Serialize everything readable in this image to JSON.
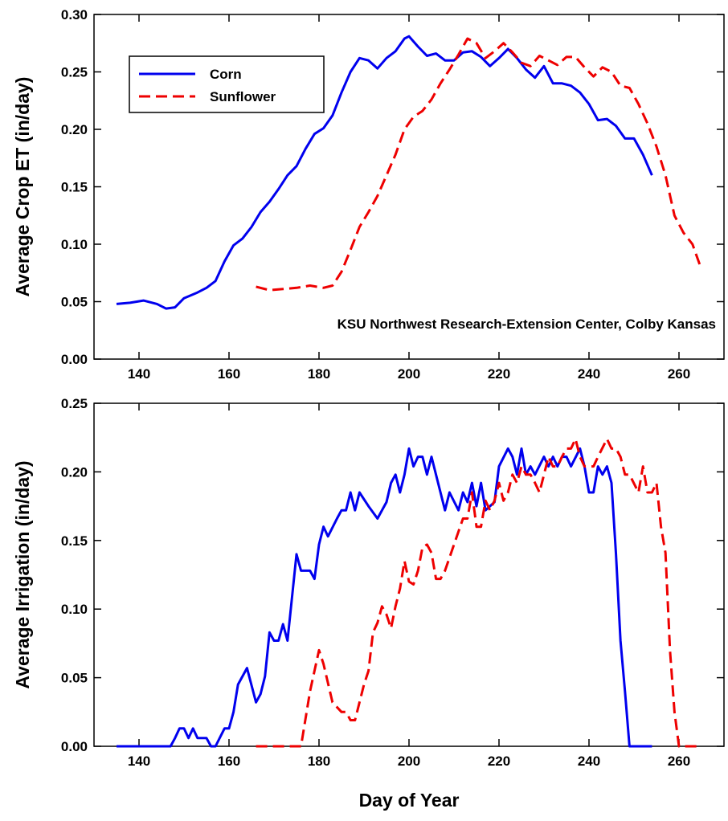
{
  "chart_data": [
    {
      "type": "line",
      "ylabel": "Average Crop ET (in/day)",
      "annotation": "KSU Northwest Research-Extension Center, Colby Kansas",
      "legend": "upper left",
      "xlim": [
        130,
        270
      ],
      "xticks": [
        140,
        160,
        180,
        200,
        220,
        240,
        260
      ],
      "ylim": [
        0,
        0.3
      ],
      "yticks": [
        {
          "value": 0,
          "label": "0.00"
        },
        {
          "value": 0.05,
          "label": "0.05"
        },
        {
          "value": 0.1,
          "label": "0.10"
        },
        {
          "value": 0.15,
          "label": "0.15"
        },
        {
          "value": 0.2,
          "label": "0.20"
        },
        {
          "value": 0.25,
          "label": "0.25"
        },
        {
          "value": 0.3,
          "label": "0.30"
        }
      ],
      "series": [
        {
          "name": "Corn",
          "color": "#0000ee",
          "dash": false,
          "x": [
            135,
            138,
            141,
            144,
            146,
            148,
            150,
            153,
            155,
            157,
            159,
            161,
            163,
            165,
            167,
            169,
            171,
            173,
            175,
            177,
            179,
            181,
            183,
            185,
            187,
            189,
            191,
            193,
            195,
            197,
            199,
            200,
            202,
            204,
            206,
            208,
            210,
            212,
            214,
            216,
            218,
            220,
            222,
            224,
            226,
            228,
            230,
            232,
            234,
            236,
            238,
            240,
            242,
            244,
            246,
            248,
            250,
            252,
            254
          ],
          "values": [
            0.048,
            0.049,
            0.051,
            0.048,
            0.044,
            0.045,
            0.053,
            0.058,
            0.062,
            0.068,
            0.085,
            0.099,
            0.105,
            0.115,
            0.128,
            0.137,
            0.148,
            0.16,
            0.168,
            0.183,
            0.196,
            0.201,
            0.212,
            0.232,
            0.25,
            0.262,
            0.26,
            0.253,
            0.262,
            0.268,
            0.279,
            0.281,
            0.272,
            0.264,
            0.266,
            0.26,
            0.26,
            0.267,
            0.268,
            0.263,
            0.255,
            0.262,
            0.27,
            0.262,
            0.252,
            0.245,
            0.255,
            0.24,
            0.24,
            0.238,
            0.232,
            0.222,
            0.208,
            0.209,
            0.203,
            0.192,
            0.192,
            0.178,
            0.16
          ]
        },
        {
          "name": "Sunflower",
          "color": "#ee0000",
          "dash": true,
          "x": [
            166,
            169,
            172,
            175,
            178,
            181,
            183,
            185,
            187,
            189,
            191,
            193,
            195,
            197,
            199,
            201,
            203,
            205,
            207,
            209,
            211,
            213,
            215,
            217,
            219,
            221,
            223,
            225,
            227,
            229,
            231,
            233,
            235,
            237,
            239,
            241,
            243,
            245,
            247,
            249,
            251,
            253,
            255,
            257,
            259,
            261,
            263,
            265
          ],
          "values": [
            0.063,
            0.06,
            0.061,
            0.062,
            0.064,
            0.062,
            0.064,
            0.076,
            0.095,
            0.115,
            0.128,
            0.142,
            0.16,
            0.178,
            0.2,
            0.211,
            0.216,
            0.226,
            0.24,
            0.252,
            0.265,
            0.279,
            0.275,
            0.262,
            0.268,
            0.275,
            0.267,
            0.258,
            0.255,
            0.264,
            0.26,
            0.256,
            0.263,
            0.263,
            0.254,
            0.246,
            0.254,
            0.25,
            0.238,
            0.236,
            0.222,
            0.205,
            0.185,
            0.16,
            0.125,
            0.11,
            0.1,
            0.078
          ]
        }
      ]
    },
    {
      "type": "line",
      "ylabel": "Average Irrigation (in/day)",
      "xlabel": "Day of Year",
      "xlim": [
        130,
        270
      ],
      "xticks": [
        140,
        160,
        180,
        200,
        220,
        240,
        260
      ],
      "ylim": [
        0,
        0.25
      ],
      "yticks": [
        {
          "value": 0,
          "label": "0.00"
        },
        {
          "value": 0.05,
          "label": "0.05"
        },
        {
          "value": 0.1,
          "label": "0.10"
        },
        {
          "value": 0.15,
          "label": "0.15"
        },
        {
          "value": 0.2,
          "label": "0.20"
        },
        {
          "value": 0.25,
          "label": "0.25"
        }
      ],
      "series": [
        {
          "color": "#0000ee",
          "dash": false,
          "x": [
            135,
            147,
            148,
            149,
            150,
            151,
            152,
            153,
            155,
            156,
            157,
            159,
            160,
            161,
            162,
            164,
            166,
            167,
            168,
            169,
            170,
            171,
            172,
            173,
            175,
            176,
            178,
            179,
            180,
            181,
            182,
            184,
            185,
            186,
            187,
            188,
            189,
            191,
            193,
            195,
            196,
            197,
            198,
            199,
            200,
            201,
            202,
            203,
            204,
            205,
            207,
            208,
            209,
            211,
            212,
            213,
            214,
            215,
            216,
            217,
            219,
            220,
            222,
            223,
            224,
            225,
            226,
            227,
            228,
            230,
            231,
            232,
            233,
            234,
            235,
            236,
            238,
            239,
            240,
            241,
            242,
            243,
            244,
            245,
            246,
            247,
            248,
            249,
            254
          ],
          "values": [
            0,
            0,
            0.006,
            0.013,
            0.013,
            0.006,
            0.013,
            0.006,
            0.006,
            0,
            0,
            0.013,
            0.013,
            0.025,
            0.045,
            0.057,
            0.032,
            0.038,
            0.051,
            0.083,
            0.077,
            0.077,
            0.089,
            0.077,
            0.14,
            0.128,
            0.128,
            0.122,
            0.147,
            0.16,
            0.153,
            0.166,
            0.172,
            0.172,
            0.185,
            0.172,
            0.185,
            0.175,
            0.166,
            0.178,
            0.192,
            0.198,
            0.185,
            0.198,
            0.217,
            0.204,
            0.211,
            0.211,
            0.198,
            0.211,
            0.185,
            0.172,
            0.185,
            0.172,
            0.185,
            0.178,
            0.192,
            0.175,
            0.192,
            0.172,
            0.178,
            0.204,
            0.217,
            0.211,
            0.198,
            0.217,
            0.198,
            0.204,
            0.198,
            0.211,
            0.204,
            0.211,
            0.204,
            0.211,
            0.211,
            0.204,
            0.217,
            0.204,
            0.185,
            0.185,
            0.204,
            0.198,
            0.204,
            0.192,
            0.14,
            0.077,
            0.04,
            0,
            0
          ]
        },
        {
          "color": "#ee0000",
          "dash": true,
          "x": [
            166,
            176,
            178,
            180,
            181,
            183,
            185,
            186,
            187,
            188,
            190,
            191,
            192,
            193,
            194,
            195,
            196,
            197,
            198,
            199,
            200,
            201,
            202,
            203,
            204,
            205,
            206,
            207,
            208,
            210,
            212,
            213,
            214,
            215,
            216,
            217,
            218,
            219,
            220,
            221,
            222,
            223,
            224,
            225,
            226,
            227,
            228,
            229,
            230,
            231,
            232,
            233,
            234,
            235,
            236,
            237,
            238,
            239,
            241,
            242,
            244,
            245,
            246,
            247,
            248,
            249,
            251,
            252,
            253,
            254,
            255,
            256,
            257,
            258,
            259,
            260,
            265
          ],
          "values": [
            0,
            0,
            0.04,
            0.07,
            0.06,
            0.032,
            0.025,
            0.025,
            0.019,
            0.019,
            0.045,
            0.055,
            0.083,
            0.09,
            0.102,
            0.096,
            0.086,
            0.102,
            0.115,
            0.135,
            0.12,
            0.118,
            0.128,
            0.145,
            0.147,
            0.141,
            0.122,
            0.122,
            0.128,
            0.147,
            0.166,
            0.166,
            0.185,
            0.16,
            0.16,
            0.179,
            0.172,
            0.179,
            0.192,
            0.179,
            0.185,
            0.198,
            0.192,
            0.204,
            0.198,
            0.198,
            0.192,
            0.185,
            0.198,
            0.211,
            0.204,
            0.204,
            0.211,
            0.217,
            0.217,
            0.224,
            0.211,
            0.204,
            0.204,
            0.211,
            0.224,
            0.217,
            0.217,
            0.211,
            0.198,
            0.198,
            0.185,
            0.204,
            0.185,
            0.185,
            0.192,
            0.16,
            0.141,
            0.07,
            0.025,
            0,
            0
          ]
        }
      ]
    }
  ]
}
